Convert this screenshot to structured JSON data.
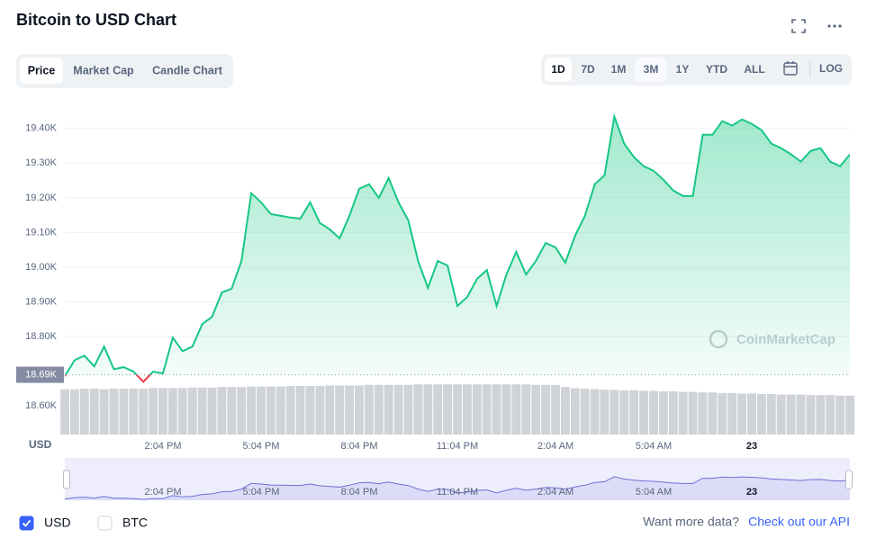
{
  "header": {
    "title": "Bitcoin to USD Chart"
  },
  "tabs": [
    "Price",
    "Market Cap",
    "Candle Chart"
  ],
  "active_tab": 0,
  "ranges": [
    "1D",
    "7D",
    "1M",
    "3M",
    "1Y",
    "YTD",
    "ALL"
  ],
  "active_range": 0,
  "highlight_range": 3,
  "log_label": "LOG",
  "chart_data": {
    "type": "line",
    "y_label": "USD",
    "watermark": "CoinMarketCap",
    "categories": [
      null,
      null,
      null,
      null,
      null,
      null,
      null,
      null,
      null,
      null,
      "2:04 PM",
      null,
      null,
      null,
      null,
      null,
      null,
      null,
      null,
      null,
      "5:04 PM",
      null,
      null,
      null,
      null,
      null,
      null,
      null,
      null,
      null,
      "8:04 PM",
      null,
      null,
      null,
      null,
      null,
      null,
      null,
      null,
      null,
      "11:04 PM",
      null,
      null,
      null,
      null,
      null,
      null,
      null,
      null,
      null,
      "2:04 AM",
      null,
      null,
      null,
      null,
      null,
      null,
      null,
      null,
      null,
      "5:04 AM",
      null,
      null,
      null,
      null,
      null,
      null,
      null,
      null,
      null,
      "23",
      null,
      null,
      null,
      null,
      null,
      null,
      null,
      null,
      null,
      null
    ],
    "values": [
      18686,
      18732,
      18745,
      18714,
      18771,
      18706,
      18712,
      18699,
      18670,
      18699,
      18694,
      18797,
      18758,
      18771,
      18836,
      18857,
      18927,
      18938,
      19018,
      19213,
      19187,
      19153,
      19148,
      19143,
      19140,
      19187,
      19127,
      19109,
      19083,
      19148,
      19226,
      19239,
      19200,
      19257,
      19187,
      19135,
      19018,
      18940,
      19018,
      19005,
      18888,
      18914,
      18966,
      18992,
      18888,
      18979,
      19044,
      18979,
      19018,
      19070,
      19057,
      19013,
      19091,
      19148,
      19239,
      19265,
      19434,
      19356,
      19317,
      19291,
      19278,
      19252,
      19221,
      19205,
      19205,
      19382,
      19382,
      19421,
      19408,
      19426,
      19413,
      19395,
      19356,
      19343,
      19325,
      19304,
      19335,
      19343,
      19304,
      19291,
      19325
    ],
    "color": "#16c784",
    "down_color": "#ea3943",
    "reference": {
      "value": 18690,
      "label": "18.69K"
    },
    "ylim": [
      18510,
      19490
    ],
    "yticks": [
      {
        "value": 18600,
        "label": "18.60K"
      },
      {
        "value": 18800,
        "label": "18.80K"
      },
      {
        "value": 18900,
        "label": "18.90K"
      },
      {
        "value": 19000,
        "label": "19.00K"
      },
      {
        "value": 19100,
        "label": "19.10K"
      },
      {
        "value": 19200,
        "label": "19.20K"
      },
      {
        "value": 19300,
        "label": "19.30K"
      },
      {
        "value": 19400,
        "label": "19.40K"
      }
    ],
    "grid": true,
    "volume": {
      "color": "#cfd3d8",
      "vlim": [
        0,
        100
      ],
      "values": [
        84,
        84,
        85,
        85,
        84,
        85,
        85,
        85,
        85,
        86,
        86,
        86,
        86,
        87,
        87,
        87,
        88,
        88,
        88,
        89,
        89,
        89,
        89,
        90,
        90,
        90,
        90,
        91,
        91,
        91,
        91,
        92,
        92,
        92,
        92,
        92,
        93,
        93,
        93,
        93,
        93,
        93,
        93,
        93,
        93,
        93,
        93,
        93,
        92,
        92,
        92,
        88,
        86,
        85,
        84,
        83,
        83,
        82,
        82,
        81,
        81,
        80,
        80,
        79,
        79,
        78,
        78,
        77,
        77,
        76,
        76,
        75,
        75,
        74,
        74,
        74,
        73,
        73,
        73,
        72,
        72
      ]
    },
    "navigator": {
      "color": "#6f6fd8",
      "fill": "#dcdcf8"
    }
  },
  "footer": {
    "options": [
      "USD",
      "BTC"
    ],
    "checked": [
      true,
      false
    ],
    "prompt": "Want more data?",
    "link": "Check out our API"
  }
}
